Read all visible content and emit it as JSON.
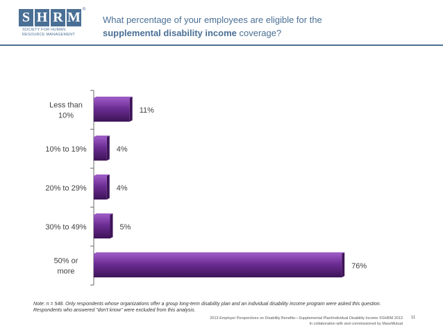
{
  "logo": {
    "letters": [
      "S",
      "H",
      "R",
      "M"
    ],
    "mark": "®",
    "tagline": [
      "SOCIETY FOR HUMAN",
      "RESOURCE MANAGEMENT"
    ]
  },
  "title": {
    "line1": "What percentage of your employees are eligible for the",
    "bold": "supplemental disability income",
    "rest": " coverage?"
  },
  "chart_data": {
    "type": "bar",
    "orientation": "horizontal",
    "categories": [
      [
        "Less than",
        "10%"
      ],
      [
        "10% to 19%"
      ],
      [
        "20% to 29%"
      ],
      [
        "30% to 49%"
      ],
      [
        "50% or",
        "more"
      ]
    ],
    "values": [
      11,
      4,
      4,
      5,
      76
    ],
    "labels": [
      "11%",
      "4%",
      "4%",
      "5%",
      "76%"
    ],
    "xlim": [
      0,
      100
    ],
    "bar_color": "#6a2c91",
    "bar_highlight": "#9b59c4",
    "bar_shadow": "#3d1458"
  },
  "note": "Note: n = 548. Only respondents whose organizations offer a group long-term disability plan and an individual disability income program were asked this question. Respondents who answered \"don't know\" were excluded from this analysis.",
  "footer": {
    "line1": "2013 Employer Perspectives on Disability Benefits—Supplemental Plan/Individual Disability Income ©SHRM 2013",
    "line2": "In collaboration with and commissioned by MassMutual"
  },
  "page_number": "11"
}
